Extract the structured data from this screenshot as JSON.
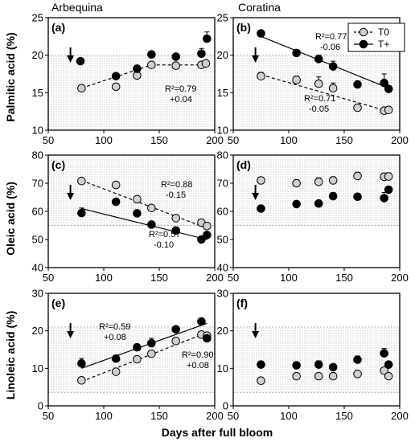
{
  "figure": {
    "column_titles": [
      "Arbequina",
      "Coratina"
    ],
    "x_axis_label": "Days after full bloom",
    "legend": {
      "labels": [
        "T0",
        "T+"
      ]
    },
    "colors": {
      "t0_fill": "#cfcfcf",
      "tplus_fill": "#000000",
      "band_fill": "#e3e3e3"
    }
  },
  "chart_data": [
    {
      "type": "scatter",
      "panel": "(a)",
      "column": "Arbequina",
      "ylabel": "Palmitic acid (%)",
      "xlim": [
        50,
        200
      ],
      "ylim": [
        10,
        25
      ],
      "xticks": [
        "50",
        "100",
        "150",
        "200"
      ],
      "yticks": [
        "10",
        "15",
        "20",
        "25"
      ],
      "band": [
        10,
        20
      ],
      "arrow_x": 70,
      "series": [
        {
          "name": "T0",
          "x": [
            80,
            111,
            130,
            143,
            165,
            188,
            192
          ],
          "y": [
            15.6,
            15.8,
            17.3,
            18.7,
            18.6,
            18.7,
            18.9
          ]
        },
        {
          "name": "T+",
          "x": [
            79,
            111,
            130,
            143,
            165,
            188,
            193
          ],
          "y": [
            19.2,
            17.2,
            18.2,
            20.1,
            19.8,
            20.2,
            22.2
          ],
          "err": [
            0,
            0,
            0,
            0,
            0,
            0.7,
            0.9
          ]
        }
      ],
      "fits": [
        {
          "series": "T0",
          "style": "dashed",
          "points": [
            [
              80,
              15.6
            ],
            [
              143,
              18.7
            ],
            [
              165,
              18.7
            ],
            [
              193,
              18.7
            ]
          ]
        }
      ],
      "annotations": [
        {
          "sup": "2",
          "lines": [
            "R²=0.79",
            "+0.04"
          ]
        }
      ]
    },
    {
      "type": "scatter",
      "panel": "(b)",
      "column": "Coratina",
      "ylabel": "",
      "xlim": [
        50,
        200
      ],
      "ylim": [
        10,
        25
      ],
      "xticks": [
        "50",
        "100",
        "150",
        "200"
      ],
      "yticks": [
        "10",
        "15",
        "20",
        "25"
      ],
      "band": [
        10,
        20
      ],
      "arrow_x": 70,
      "series": [
        {
          "name": "T0",
          "x": [
            75,
            107,
            127,
            140,
            162,
            186,
            190
          ],
          "y": [
            17.2,
            16.7,
            16.2,
            15.6,
            13.0,
            12.6,
            12.7
          ],
          "err": [
            0.5,
            0.5,
            0.9,
            0.7,
            0,
            0,
            0
          ]
        },
        {
          "name": "T+",
          "x": [
            75,
            107,
            127,
            140,
            162,
            186,
            190
          ],
          "y": [
            22.9,
            20.3,
            19.5,
            18.5,
            16.1,
            16.3,
            15.5
          ],
          "err": [
            0.4,
            0,
            0.5,
            0.7,
            0,
            1.2,
            0
          ]
        }
      ],
      "fits": [
        {
          "series": "T+",
          "style": "solid",
          "points": [
            [
              75,
              22.5
            ],
            [
              190,
              15.6
            ]
          ]
        },
        {
          "series": "T0",
          "style": "dashed",
          "points": [
            [
              75,
              17.4
            ],
            [
              190,
              12.5
            ]
          ]
        }
      ],
      "annotations": [
        {
          "sup": "2",
          "lines": [
            "R²=0.77",
            "-0.06"
          ]
        },
        {
          "sup": "2",
          "lines": [
            "R²=0.71",
            "-0.05"
          ]
        }
      ]
    },
    {
      "type": "scatter",
      "panel": "(c)",
      "column": "Arbequina",
      "ylabel": "Oleic acid (%)",
      "xlim": [
        50,
        200
      ],
      "ylim": [
        40,
        80
      ],
      "xticks": [
        "50",
        "100",
        "150",
        "200"
      ],
      "yticks": [
        "40",
        "50",
        "60",
        "70",
        "80"
      ],
      "band": [
        55,
        80
      ],
      "arrow_x": 70,
      "series": [
        {
          "name": "T0",
          "x": [
            80,
            111,
            130,
            143,
            165,
            188,
            193
          ],
          "y": [
            70.8,
            69.4,
            64.3,
            61.2,
            57.6,
            56.0,
            54.8
          ]
        },
        {
          "name": "T+",
          "x": [
            80,
            111,
            130,
            143,
            165,
            188,
            193
          ],
          "y": [
            59.4,
            63.4,
            59.3,
            55.3,
            53.2,
            50.0,
            51.6
          ],
          "err": [
            1.8,
            0,
            0,
            0,
            0,
            0,
            0
          ]
        }
      ],
      "fits": [
        {
          "series": "T0",
          "style": "dashed",
          "points": [
            [
              80,
              71.0
            ],
            [
              193,
              54.0
            ]
          ]
        },
        {
          "series": "T+",
          "style": "solid",
          "points": [
            [
              80,
              61.0
            ],
            [
              193,
              50.0
            ]
          ]
        }
      ],
      "annotations": [
        {
          "sup": "2",
          "lines": [
            "R²=0.88",
            "-0.15"
          ]
        },
        {
          "sup": "2",
          "lines": [
            "R²=0.57",
            "-0.10"
          ]
        }
      ]
    },
    {
      "type": "scatter",
      "panel": "(d)",
      "column": "Coratina",
      "ylabel": "",
      "xlim": [
        50,
        200
      ],
      "ylim": [
        40,
        80
      ],
      "xticks": [
        "50",
        "100",
        "150",
        "200"
      ],
      "yticks": [
        "40",
        "50",
        "60",
        "70",
        "80"
      ],
      "band": [
        55,
        80
      ],
      "arrow_x": 70,
      "series": [
        {
          "name": "T0",
          "x": [
            75,
            107,
            127,
            140,
            162,
            186,
            190
          ],
          "y": [
            71.0,
            70.0,
            70.5,
            71.0,
            72.6,
            72.3,
            72.4
          ],
          "err": [
            0,
            1.2,
            1.4,
            1.3,
            1.3,
            1.3,
            1.3
          ]
        },
        {
          "name": "T+",
          "x": [
            75,
            107,
            127,
            140,
            162,
            186,
            190
          ],
          "y": [
            61.0,
            62.6,
            62.8,
            65.4,
            65.2,
            64.7,
            67.7
          ],
          "err": [
            0,
            0,
            0,
            1.3,
            0,
            2.0,
            0
          ]
        }
      ],
      "fits": [],
      "annotations": []
    },
    {
      "type": "scatter",
      "panel": "(e)",
      "column": "Arbequina",
      "ylabel": "Linoleic acid (%)",
      "xlim": [
        50,
        200
      ],
      "ylim": [
        0,
        30
      ],
      "xticks": [
        "50",
        "100",
        "150",
        "200"
      ],
      "yticks": [
        "0",
        "10",
        "20",
        "30"
      ],
      "band": [
        3.5,
        21
      ],
      "arrow_x": 70,
      "series": [
        {
          "name": "T0",
          "x": [
            80,
            111,
            130,
            143,
            165,
            188,
            193
          ],
          "y": [
            6.8,
            9.1,
            12.4,
            13.9,
            17.3,
            19.0,
            18.7
          ]
        },
        {
          "name": "T+",
          "x": [
            80,
            111,
            130,
            143,
            165,
            188,
            193
          ],
          "y": [
            11.3,
            12.6,
            15.6,
            16.7,
            20.4,
            22.5,
            18.0
          ],
          "err": [
            1.3,
            0,
            0,
            1.3,
            0,
            0,
            0
          ]
        }
      ],
      "fits": [
        {
          "series": "T+",
          "style": "solid",
          "points": [
            [
              80,
              10.0
            ],
            [
              193,
              22.0
            ]
          ]
        },
        {
          "series": "T0",
          "style": "dashed",
          "points": [
            [
              80,
              6.5
            ],
            [
              193,
              19.5
            ]
          ]
        }
      ],
      "annotations": [
        {
          "sup": "2",
          "lines": [
            "R²=0.59",
            "+0.08"
          ]
        },
        {
          "sup": "2",
          "lines": [
            "R²=0.90",
            "+0.08"
          ]
        }
      ]
    },
    {
      "type": "scatter",
      "panel": "(f)",
      "column": "Coratina",
      "ylabel": "",
      "xlim": [
        50,
        200
      ],
      "ylim": [
        0,
        30
      ],
      "xticks": [
        "50",
        "100",
        "150",
        "200"
      ],
      "yticks": [
        "0",
        "10",
        "20",
        "30"
      ],
      "band": [
        3.5,
        21
      ],
      "arrow_x": 70,
      "series": [
        {
          "name": "T0",
          "x": [
            75,
            107,
            127,
            140,
            162,
            186,
            190
          ],
          "y": [
            6.7,
            7.9,
            7.9,
            7.9,
            8.5,
            9.4,
            7.9
          ]
        },
        {
          "name": "T+",
          "x": [
            75,
            107,
            127,
            140,
            162,
            186,
            190
          ],
          "y": [
            11.0,
            10.8,
            11.0,
            10.3,
            12.3,
            14.0,
            11.0
          ],
          "err": [
            0,
            0,
            1.0,
            0,
            1.0,
            1.3,
            0
          ]
        }
      ],
      "fits": [],
      "annotations": []
    }
  ]
}
